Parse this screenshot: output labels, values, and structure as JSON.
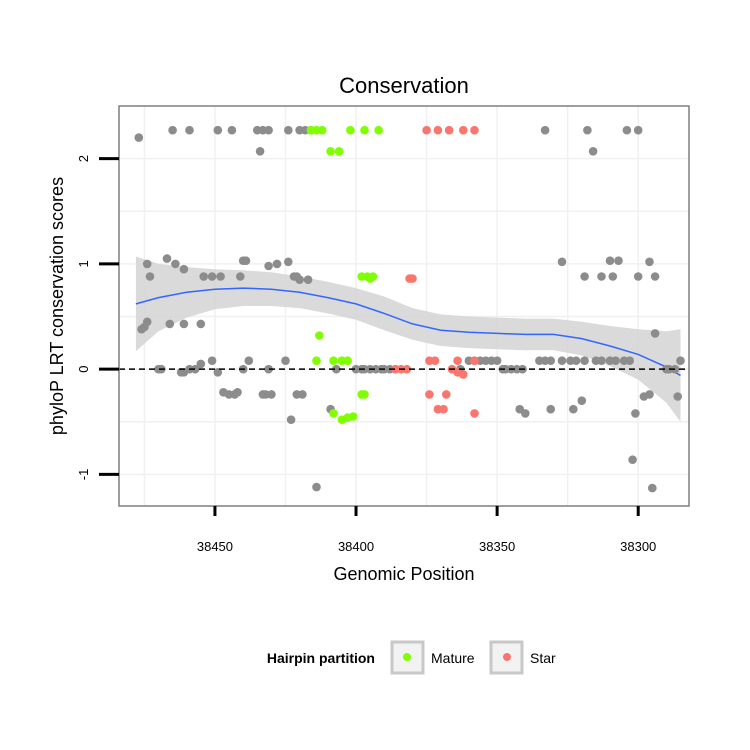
{
  "chart_data": {
    "type": "scatter",
    "title": "Conservation",
    "xlabel": "Genomic Position",
    "ylabel": "phyloP LRT conservation scores",
    "x_reversed": true,
    "xlim": [
      38484,
      38282
    ],
    "ylim": [
      -1.3,
      2.5
    ],
    "x_ticks": [
      38450,
      38400,
      38350,
      38300
    ],
    "y_ticks": [
      -1,
      0,
      1,
      2
    ],
    "x_tick_labels": [
      "38450",
      "38400",
      "38350",
      "38300"
    ],
    "y_tick_labels": [
      "-1",
      "0",
      "1",
      "2"
    ],
    "reference_line": {
      "y": 0,
      "style": "dashed"
    },
    "legend": {
      "title": "Hairpin partition",
      "position": "bottom",
      "entries": [
        {
          "label": "Mature",
          "color": "#7FFF00"
        },
        {
          "label": "Star",
          "color": "#F8766D"
        }
      ]
    },
    "colors": {
      "other": "#8c8c8c",
      "Mature": "#7FFF00",
      "Star": "#F8766D",
      "smooth": "#3366FF",
      "band": "#d3d3d3"
    },
    "series": [
      {
        "name": "Other",
        "points": [
          [
            38477,
            2.2
          ],
          [
            38465,
            2.27
          ],
          [
            38459,
            2.27
          ],
          [
            38449,
            2.27
          ],
          [
            38444,
            2.27
          ],
          [
            38435,
            2.27
          ],
          [
            38433,
            2.27
          ],
          [
            38431,
            2.27
          ],
          [
            38434,
            2.07
          ],
          [
            38424,
            2.27
          ],
          [
            38420,
            2.27
          ],
          [
            38418,
            2.27
          ],
          [
            38416,
            2.27
          ],
          [
            38333,
            2.27
          ],
          [
            38318,
            2.27
          ],
          [
            38316,
            2.07
          ],
          [
            38304,
            2.27
          ],
          [
            38300,
            2.27
          ],
          [
            38474,
            1.0
          ],
          [
            38467,
            1.05
          ],
          [
            38464,
            1.0
          ],
          [
            38461,
            0.95
          ],
          [
            38473,
            0.88
          ],
          [
            38454,
            0.88
          ],
          [
            38451,
            0.88
          ],
          [
            38448,
            0.88
          ],
          [
            38440,
            1.03
          ],
          [
            38439,
            1.03
          ],
          [
            38441,
            0.88
          ],
          [
            38431,
            0.98
          ],
          [
            38428,
            1.0
          ],
          [
            38424,
            1.02
          ],
          [
            38422,
            0.88
          ],
          [
            38421,
            0.88
          ],
          [
            38420,
            0.85
          ],
          [
            38417,
            0.85
          ],
          [
            38327,
            1.02
          ],
          [
            38319,
            0.88
          ],
          [
            38313,
            0.88
          ],
          [
            38310,
            1.03
          ],
          [
            38307,
            1.03
          ],
          [
            38309,
            0.88
          ],
          [
            38300,
            0.88
          ],
          [
            38296,
            1.02
          ],
          [
            38294,
            0.88
          ],
          [
            38476,
            0.38
          ],
          [
            38475,
            0.4
          ],
          [
            38474,
            0.45
          ],
          [
            38466,
            0.43
          ],
          [
            38461,
            0.43
          ],
          [
            38455,
            0.43
          ],
          [
            38470,
            0.0
          ],
          [
            38469,
            0.0
          ],
          [
            38462,
            -0.03
          ],
          [
            38461,
            -0.03
          ],
          [
            38459,
            0.0
          ],
          [
            38457,
            0.0
          ],
          [
            38455,
            0.05
          ],
          [
            38451,
            0.08
          ],
          [
            38449,
            -0.03
          ],
          [
            38447,
            -0.22
          ],
          [
            38445,
            -0.24
          ],
          [
            38443,
            -0.24
          ],
          [
            38442,
            -0.22
          ],
          [
            38440,
            0.0
          ],
          [
            38438,
            0.08
          ],
          [
            38433,
            -0.24
          ],
          [
            38432,
            -0.24
          ],
          [
            38431,
            0.0
          ],
          [
            38430,
            -0.24
          ],
          [
            38425,
            0.08
          ],
          [
            38423,
            -0.48
          ],
          [
            38421,
            -0.24
          ],
          [
            38419,
            -0.24
          ],
          [
            38414,
            -1.12
          ],
          [
            38409,
            -0.38
          ],
          [
            38407,
            0.0
          ],
          [
            38400,
            0.0
          ],
          [
            38398,
            0.0
          ],
          [
            38397,
            0.0
          ],
          [
            38395,
            0.0
          ],
          [
            38393,
            0.0
          ],
          [
            38391,
            0.0
          ],
          [
            38390,
            0.0
          ],
          [
            38388,
            0.0
          ],
          [
            38386,
            0.0
          ],
          [
            38363,
            0.0
          ],
          [
            38360,
            0.08
          ],
          [
            38358,
            0.08
          ],
          [
            38356,
            0.08
          ],
          [
            38354,
            0.08
          ],
          [
            38352,
            0.08
          ],
          [
            38350,
            0.08
          ],
          [
            38348,
            0.0
          ],
          [
            38347,
            0.0
          ],
          [
            38345,
            0.0
          ],
          [
            38343,
            0.0
          ],
          [
            38341,
            0.0
          ],
          [
            38342,
            -0.38
          ],
          [
            38340,
            -0.42
          ],
          [
            38331,
            -0.38
          ],
          [
            38335,
            0.08
          ],
          [
            38333,
            0.08
          ],
          [
            38331,
            0.08
          ],
          [
            38327,
            0.08
          ],
          [
            38323,
            -0.38
          ],
          [
            38324,
            0.08
          ],
          [
            38322,
            0.08
          ],
          [
            38320,
            -0.3
          ],
          [
            38319,
            0.08
          ],
          [
            38315,
            0.08
          ],
          [
            38313,
            0.08
          ],
          [
            38310,
            0.08
          ],
          [
            38308,
            0.08
          ],
          [
            38305,
            0.08
          ],
          [
            38303,
            0.08
          ],
          [
            38302,
            -0.86
          ],
          [
            38301,
            -0.42
          ],
          [
            38298,
            -0.26
          ],
          [
            38296,
            -0.24
          ],
          [
            38295,
            -1.13
          ],
          [
            38294,
            0.34
          ],
          [
            38290,
            0.0
          ],
          [
            38289,
            0.0
          ],
          [
            38287,
            0.0
          ],
          [
            38286,
            -0.26
          ],
          [
            38285,
            0.08
          ]
        ]
      },
      {
        "name": "Mature",
        "points": [
          [
            38416,
            2.27
          ],
          [
            38414,
            2.27
          ],
          [
            38412,
            2.27
          ],
          [
            38409,
            2.07
          ],
          [
            38406,
            2.07
          ],
          [
            38402,
            2.27
          ],
          [
            38397,
            2.27
          ],
          [
            38392,
            2.27
          ],
          [
            38398,
            0.88
          ],
          [
            38396,
            0.88
          ],
          [
            38395,
            0.86
          ],
          [
            38394,
            0.88
          ],
          [
            38413,
            0.32
          ],
          [
            38414,
            0.08
          ],
          [
            38408,
            0.08
          ],
          [
            38405,
            0.08
          ],
          [
            38403,
            0.08
          ],
          [
            38408,
            -0.42
          ],
          [
            38405,
            -0.48
          ],
          [
            38403,
            -0.46
          ],
          [
            38401,
            -0.45
          ],
          [
            38397,
            -0.24
          ],
          [
            38398,
            -0.24
          ]
        ]
      },
      {
        "name": "Star",
        "points": [
          [
            38375,
            2.27
          ],
          [
            38371,
            2.27
          ],
          [
            38367,
            2.27
          ],
          [
            38362,
            2.27
          ],
          [
            38358,
            2.27
          ],
          [
            38381,
            0.86
          ],
          [
            38380,
            0.86
          ],
          [
            38374,
            0.08
          ],
          [
            38372,
            0.08
          ],
          [
            38364,
            0.08
          ],
          [
            38358,
            0.08
          ],
          [
            38386,
            0.0
          ],
          [
            38384,
            0.0
          ],
          [
            38382,
            0.0
          ],
          [
            38366,
            0.0
          ],
          [
            38364,
            -0.03
          ],
          [
            38362,
            -0.05
          ],
          [
            38374,
            -0.24
          ],
          [
            38368,
            -0.24
          ],
          [
            38371,
            -0.38
          ],
          [
            38369,
            -0.38
          ],
          [
            38358,
            -0.42
          ]
        ]
      }
    ],
    "smooth": {
      "x": [
        38478,
        38470,
        38460,
        38450,
        38440,
        38430,
        38420,
        38410,
        38400,
        38390,
        38380,
        38370,
        38360,
        38350,
        38340,
        38330,
        38320,
        38310,
        38300,
        38290,
        38285
      ],
      "y": [
        0.62,
        0.68,
        0.73,
        0.76,
        0.77,
        0.76,
        0.73,
        0.68,
        0.62,
        0.53,
        0.43,
        0.37,
        0.35,
        0.34,
        0.33,
        0.33,
        0.29,
        0.22,
        0.14,
        0.02,
        -0.06
      ],
      "se": [
        0.45,
        0.32,
        0.24,
        0.19,
        0.17,
        0.16,
        0.15,
        0.15,
        0.15,
        0.16,
        0.15,
        0.15,
        0.15,
        0.15,
        0.15,
        0.15,
        0.16,
        0.19,
        0.24,
        0.34,
        0.44
      ]
    }
  }
}
